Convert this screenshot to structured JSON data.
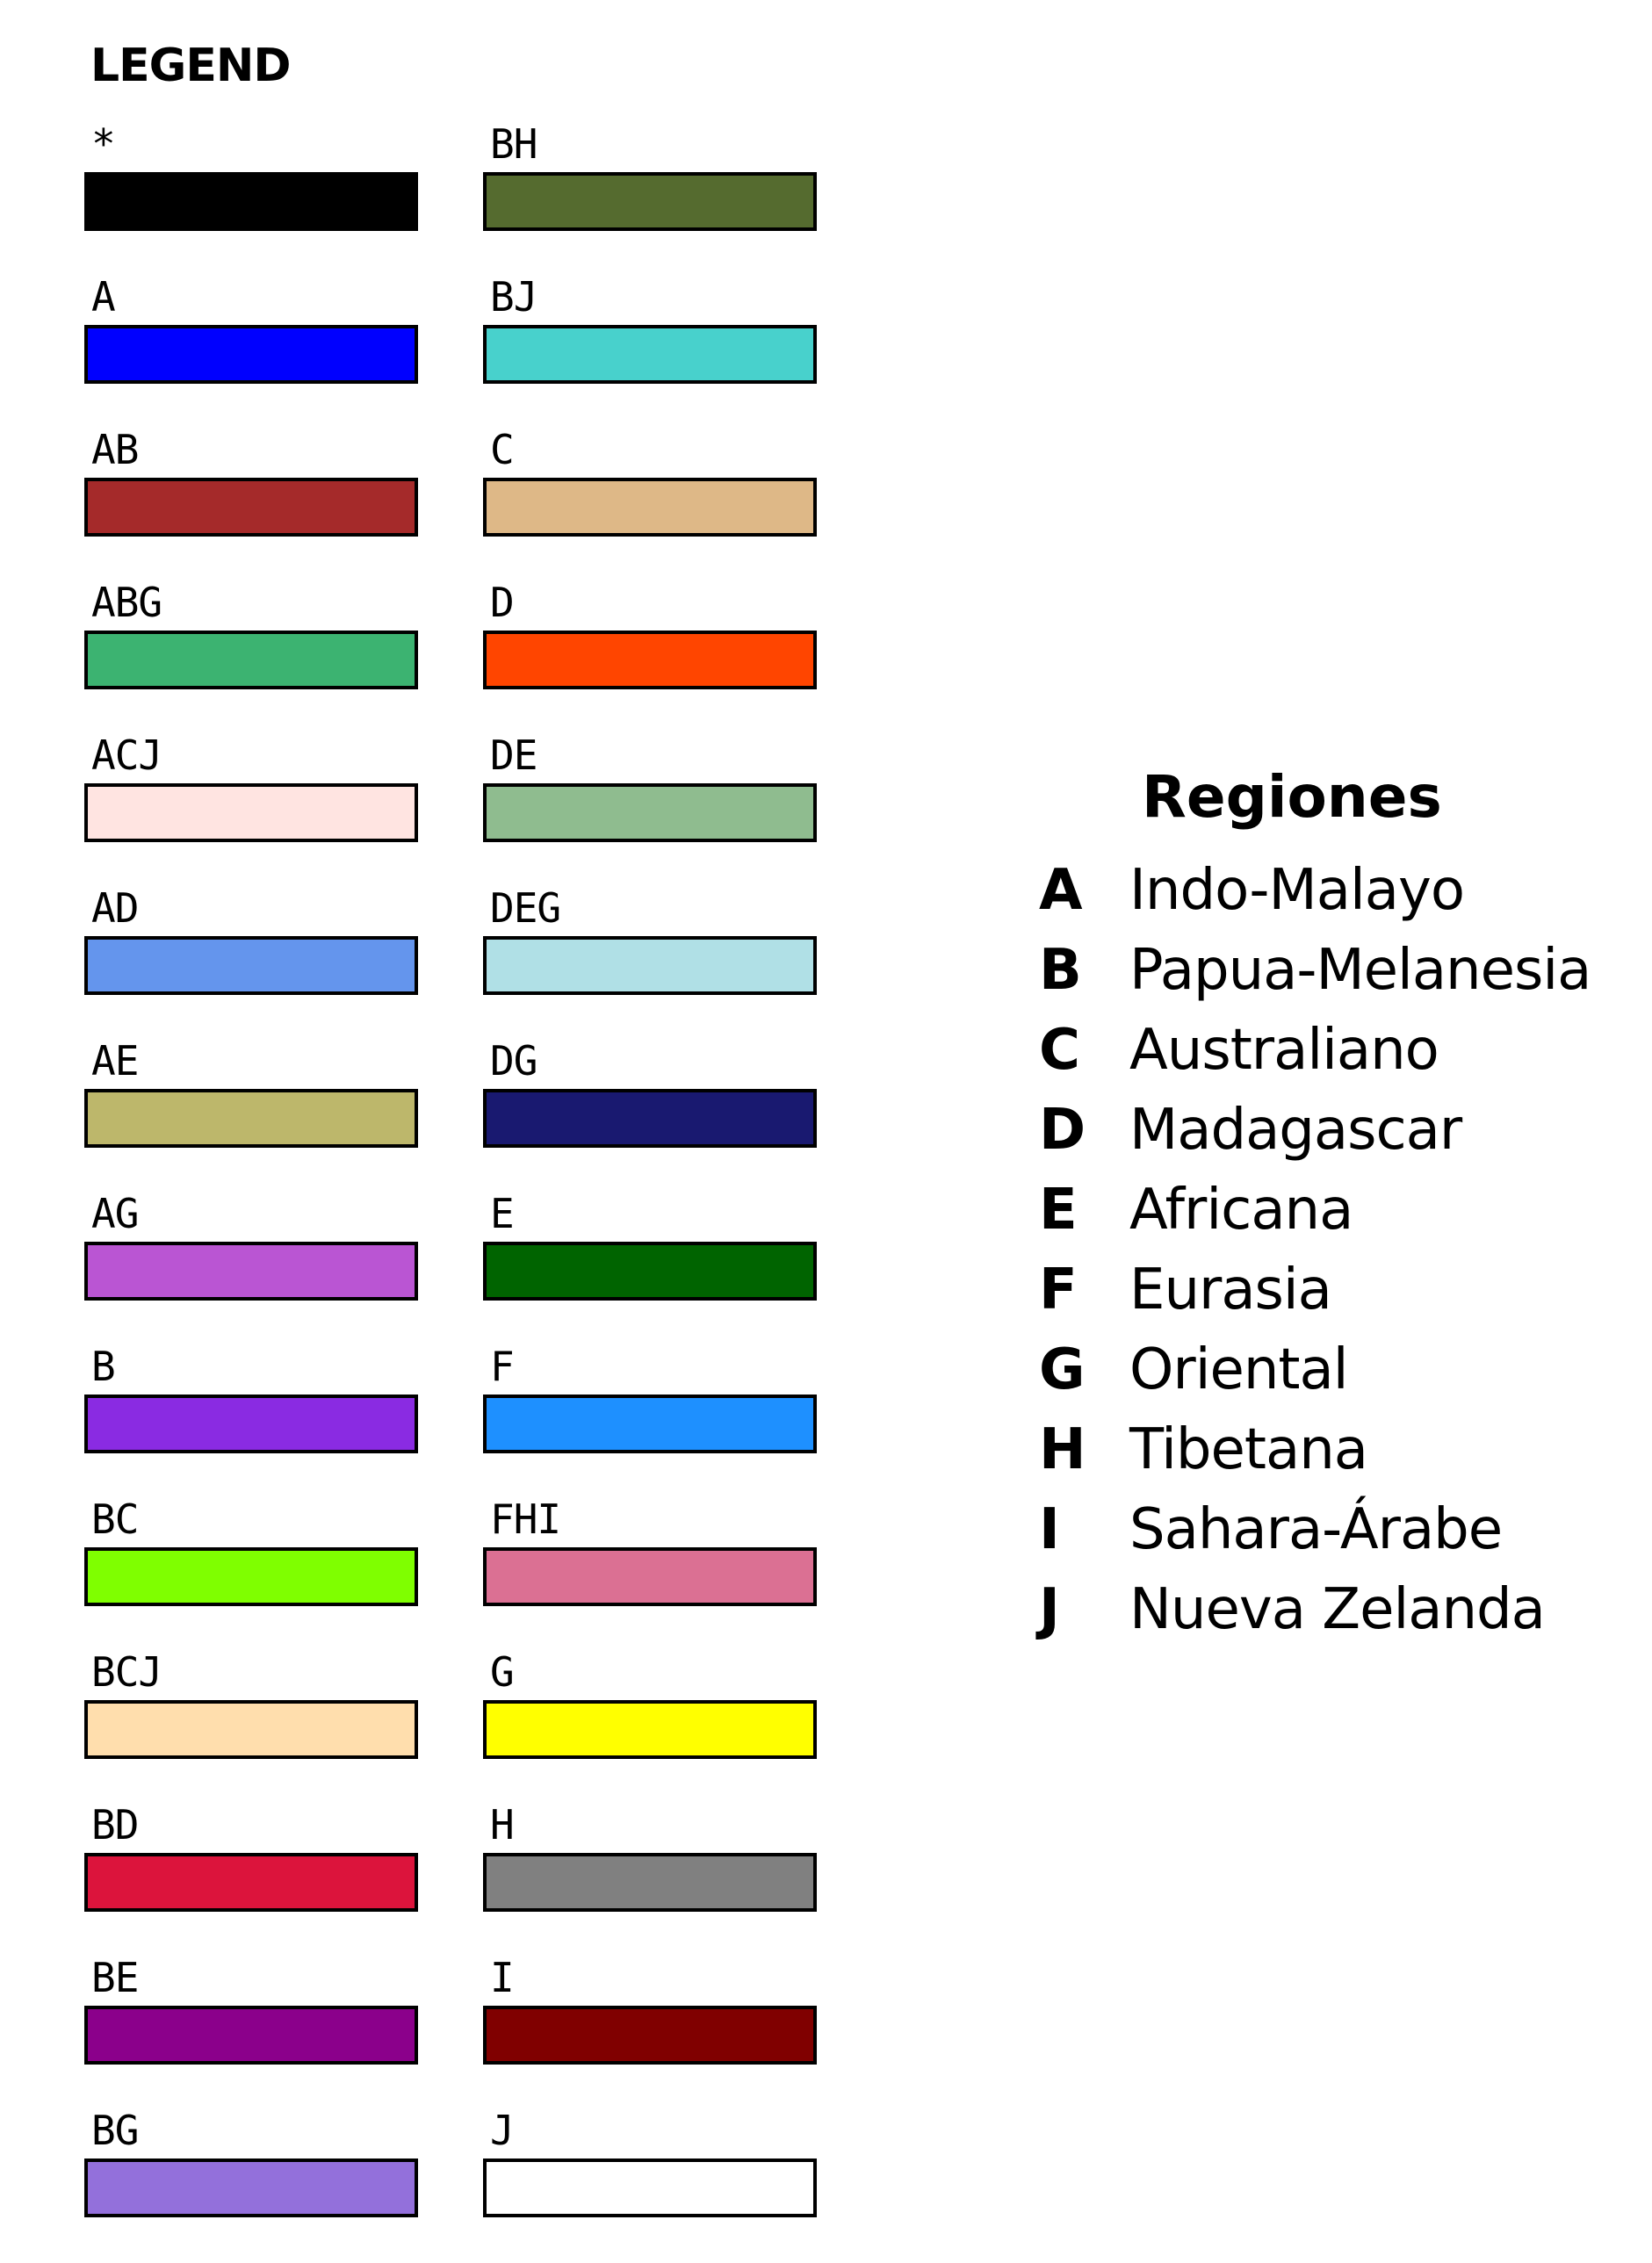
{
  "legend": {
    "title": "LEGEND",
    "left_column": [
      {
        "label": "*",
        "color": "#000000"
      },
      {
        "label": "A",
        "color": "#0000ff"
      },
      {
        "label": "AB",
        "color": "#a52a2a"
      },
      {
        "label": "ABG",
        "color": "#3cb371"
      },
      {
        "label": "ACJ",
        "color": "#ffe4e1"
      },
      {
        "label": "AD",
        "color": "#6495ed"
      },
      {
        "label": "AE",
        "color": "#bdb76b"
      },
      {
        "label": "AG",
        "color": "#ba55d3"
      },
      {
        "label": "B",
        "color": "#8a2be2"
      },
      {
        "label": "BC",
        "color": "#7fff00"
      },
      {
        "label": "BCJ",
        "color": "#ffdead"
      },
      {
        "label": "BD",
        "color": "#dc143c"
      },
      {
        "label": "BE",
        "color": "#8b008b"
      },
      {
        "label": "BG",
        "color": "#9370db"
      }
    ],
    "right_column": [
      {
        "label": "BH",
        "color": "#556b2f"
      },
      {
        "label": "BJ",
        "color": "#48d1cc"
      },
      {
        "label": "C",
        "color": "#deb887"
      },
      {
        "label": "D",
        "color": "#ff4500"
      },
      {
        "label": "DE",
        "color": "#8fbc8f"
      },
      {
        "label": "DEG",
        "color": "#b0e0e6"
      },
      {
        "label": "DG",
        "color": "#191970"
      },
      {
        "label": "E",
        "color": "#006400"
      },
      {
        "label": "F",
        "color": "#1e90ff"
      },
      {
        "label": "FHI",
        "color": "#db7093"
      },
      {
        "label": "G",
        "color": "#ffff00"
      },
      {
        "label": "H",
        "color": "#808080"
      },
      {
        "label": "I",
        "color": "#800000"
      },
      {
        "label": "J",
        "color": "#ffffff"
      }
    ]
  },
  "regions": {
    "title": "Regiones",
    "items": [
      {
        "letter": "A",
        "name": "Indo-Malayo"
      },
      {
        "letter": "B",
        "name": "Papua-Melanesia"
      },
      {
        "letter": "C",
        "name": "Australiano"
      },
      {
        "letter": "D",
        "name": "Madagascar"
      },
      {
        "letter": "E",
        "name": "Africana"
      },
      {
        "letter": "F",
        "name": "Eurasia"
      },
      {
        "letter": "G",
        "name": "Oriental"
      },
      {
        "letter": "H",
        "name": "Tibetana"
      },
      {
        "letter": "I",
        "name": "Sahara-Árabe"
      },
      {
        "letter": "J",
        "name": "Nueva Zelanda"
      }
    ]
  }
}
